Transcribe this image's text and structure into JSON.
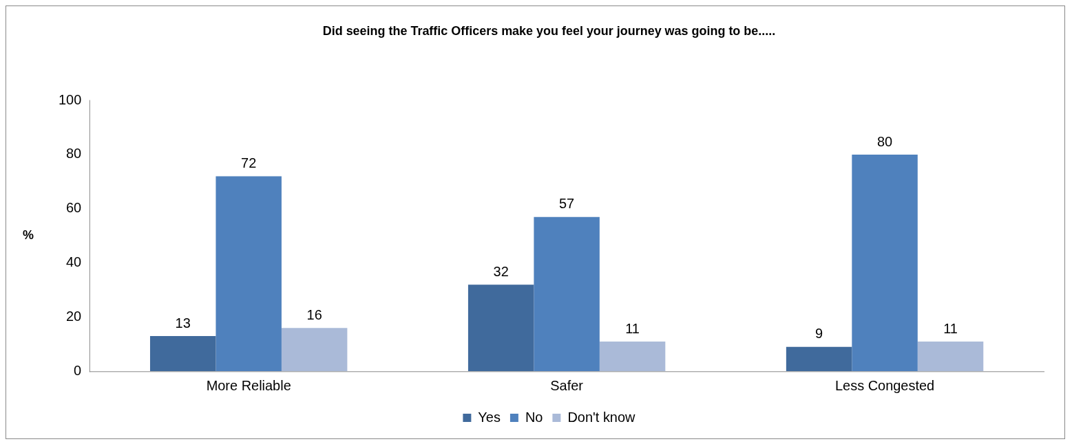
{
  "chart_data": {
    "type": "bar",
    "title": "Did seeing the Traffic Officers make you feel your journey was going to be.....",
    "ylabel": "%",
    "categories": [
      "More Reliable",
      "Safer",
      "Less Congested"
    ],
    "series": [
      {
        "name": "Yes",
        "color": "#406a9c",
        "values": [
          13,
          32,
          9
        ]
      },
      {
        "name": "No",
        "color": "#4f81bd",
        "values": [
          72,
          57,
          80
        ]
      },
      {
        "name": "Don't know",
        "color": "#aabad8",
        "values": [
          16,
          11,
          11
        ]
      }
    ],
    "ylim": [
      0,
      100
    ],
    "yticks": [
      0,
      20,
      40,
      60,
      80,
      100
    ],
    "grid": false,
    "legend": "bottom",
    "data_labels": true
  }
}
